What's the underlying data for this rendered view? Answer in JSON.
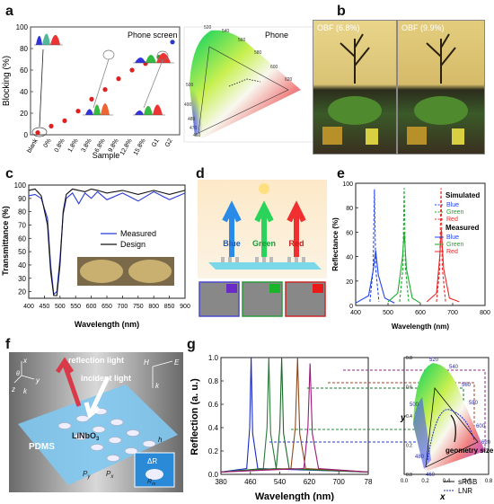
{
  "figure": {
    "panel_labels": [
      "a",
      "b",
      "c",
      "d",
      "e",
      "f",
      "g"
    ]
  },
  "panel_a": {
    "ylabel": "Blocking (%)",
    "xlabel": "Sample",
    "inset_title": "Phone screen",
    "cie_title": "Phone",
    "y_ticks": [
      "0",
      "20",
      "40",
      "60",
      "80",
      "100"
    ],
    "categories": [
      "blank",
      "0%",
      "0.8%",
      "1.8%",
      "3.8%",
      "6.8%",
      "9.8%",
      "12.8%",
      "15.8%",
      "G1",
      "G2"
    ],
    "cie_wavelengths": [
      "520",
      "540",
      "560",
      "580",
      "600",
      "620",
      "500",
      "490",
      "480",
      "470",
      "460"
    ]
  },
  "panel_b": {
    "left_tag": "OBF (6.8%)",
    "right_tag": "OBF (9.9%)"
  },
  "panel_c": {
    "ylabel": "Transmittance (%)",
    "xlabel": "Wavelength (nm)",
    "legend": [
      "Measured",
      "Design"
    ],
    "y_ticks": [
      "20",
      "30",
      "40",
      "50",
      "60",
      "70",
      "80",
      "90",
      "100"
    ],
    "x_ticks": [
      "400",
      "450",
      "500",
      "550",
      "600",
      "650",
      "700",
      "750",
      "800",
      "850",
      "900"
    ]
  },
  "panel_d": {
    "labels": [
      "Blue",
      "Green",
      "Red"
    ]
  },
  "panel_e": {
    "ylabel": "Reflectance (%)",
    "xlabel": "Wavelength (nm)",
    "legend_sim_title": "Simulated",
    "legend_meas_title": "Measured",
    "legend_items": [
      "Blue",
      "Green",
      "Red"
    ],
    "y_ticks": [
      "0",
      "20",
      "40",
      "60",
      "80",
      "100"
    ],
    "x_ticks": [
      "400",
      "500",
      "600",
      "700",
      "800"
    ]
  },
  "panel_f": {
    "reflection": "reflection light",
    "incident": "incident light",
    "material": "LiNbO",
    "material_sub": "3",
    "substrate": "PDMS",
    "axis_x": "x",
    "axis_y": "y",
    "axis_z": "z",
    "axis_k": "k",
    "axis_theta": "θ",
    "axis_h_field": "H",
    "axis_e_field": "E",
    "axis_k2": "k",
    "h": "h",
    "py": "P",
    "py_sub": "y",
    "px": "P",
    "px_sub": "x",
    "dr": "ΔR",
    "rm": "R",
    "rm_sub": "m"
  },
  "panel_g": {
    "ylabel": "Reflection (a. u.)",
    "xlabel": "Wavelength (nm)",
    "y_ticks": [
      "0.0",
      "0.2",
      "0.4",
      "0.6",
      "0.8",
      "1.0"
    ],
    "x_ticks": [
      "380",
      "460",
      "540",
      "620",
      "700",
      "78"
    ],
    "cie_xlabel": "x",
    "cie_ylabel": "y",
    "cie_x_ticks": [
      "0.0",
      "0.2",
      "0.4",
      "0.6",
      "0.8"
    ],
    "cie_y_ticks": [
      "0.0",
      "0.2",
      "0.4",
      "0.6",
      "0.8"
    ],
    "cie_wavelengths": [
      "520",
      "540",
      "560",
      "580",
      "600",
      "620",
      "500",
      "480",
      "460"
    ],
    "annotation": "geometry size",
    "legend": [
      "sRGB",
      "LNR"
    ]
  },
  "chart_data": [
    {
      "type": "scatter",
      "panel": "a",
      "ylabel": "Blocking (%)",
      "xlabel": "Sample",
      "ylim": [
        0,
        100
      ],
      "categories": [
        "blank",
        "0%",
        "0.8%",
        "1.8%",
        "3.8%",
        "6.8%",
        "9.8%",
        "12.8%",
        "15.8%",
        "G1",
        "G2"
      ],
      "values": [
        2,
        8,
        13,
        22,
        33,
        42,
        52,
        60,
        66,
        72,
        86
      ]
    },
    {
      "type": "line",
      "panel": "c",
      "xlabel": "Wavelength (nm)",
      "ylabel": "Transmittance (%)",
      "xlim": [
        400,
        900
      ],
      "ylim": [
        15,
        100
      ],
      "series": [
        {
          "name": "Measured",
          "x": [
            400,
            420,
            440,
            460,
            470,
            480,
            490,
            500,
            510,
            520,
            540,
            560,
            580,
            600,
            620,
            650,
            700,
            750,
            800,
            850,
            900
          ],
          "y": [
            92,
            93,
            90,
            75,
            40,
            18,
            20,
            45,
            78,
            90,
            94,
            86,
            94,
            90,
            95,
            89,
            94,
            88,
            95,
            89,
            94
          ]
        },
        {
          "name": "Design",
          "x": [
            400,
            420,
            440,
            460,
            470,
            480,
            490,
            500,
            510,
            520,
            540,
            560,
            580,
            600,
            620,
            650,
            700,
            750,
            800,
            850,
            900
          ],
          "y": [
            96,
            97,
            92,
            70,
            35,
            17,
            17,
            40,
            80,
            93,
            97,
            96,
            95,
            97,
            96,
            94,
            96,
            93,
            96,
            93,
            96
          ]
        }
      ]
    },
    {
      "type": "line",
      "panel": "e",
      "xlabel": "Wavelength (nm)",
      "ylabel": "Reflectance (%)",
      "xlim": [
        400,
        800
      ],
      "ylim": [
        0,
        100
      ],
      "series": [
        {
          "name": "Blue",
          "x": [
            400,
            440,
            455,
            462,
            470,
            490,
            520
          ],
          "y": [
            2,
            8,
            30,
            45,
            25,
            6,
            2
          ]
        },
        {
          "name": "Green",
          "x": [
            500,
            530,
            545,
            550,
            557,
            575,
            600
          ],
          "y": [
            3,
            10,
            40,
            60,
            30,
            6,
            2
          ]
        },
        {
          "name": "Red",
          "x": [
            620,
            650,
            660,
            665,
            672,
            690,
            720
          ],
          "y": [
            3,
            10,
            40,
            62,
            30,
            6,
            3
          ]
        }
      ]
    },
    {
      "type": "line",
      "panel": "g",
      "xlabel": "Wavelength (nm)",
      "ylabel": "Reflection (a. u.)",
      "xlim": [
        380,
        780
      ],
      "ylim": [
        0,
        1.0
      ],
      "series": [
        {
          "name": "peak 1",
          "x": [
            380,
            450,
            458,
            462,
            466,
            480,
            780
          ],
          "y": [
            0.02,
            0.05,
            0.4,
            1.0,
            0.35,
            0.05,
            0.02
          ]
        },
        {
          "name": "peak 2",
          "x": [
            380,
            495,
            505,
            510,
            515,
            530,
            780
          ],
          "y": [
            0.02,
            0.05,
            0.4,
            1.0,
            0.35,
            0.05,
            0.02
          ]
        },
        {
          "name": "peak 3",
          "x": [
            380,
            530,
            540,
            545,
            550,
            565,
            780
          ],
          "y": [
            0.02,
            0.05,
            0.4,
            1.0,
            0.35,
            0.05,
            0.02
          ]
        },
        {
          "name": "peak 4",
          "x": [
            380,
            570,
            582,
            588,
            594,
            610,
            780
          ],
          "y": [
            0.02,
            0.05,
            0.4,
            1.0,
            0.35,
            0.05,
            0.02
          ]
        },
        {
          "name": "peak 5",
          "x": [
            380,
            605,
            616,
            622,
            628,
            645,
            780
          ],
          "y": [
            0.02,
            0.05,
            0.4,
            0.95,
            0.35,
            0.05,
            0.02
          ]
        }
      ]
    }
  ]
}
